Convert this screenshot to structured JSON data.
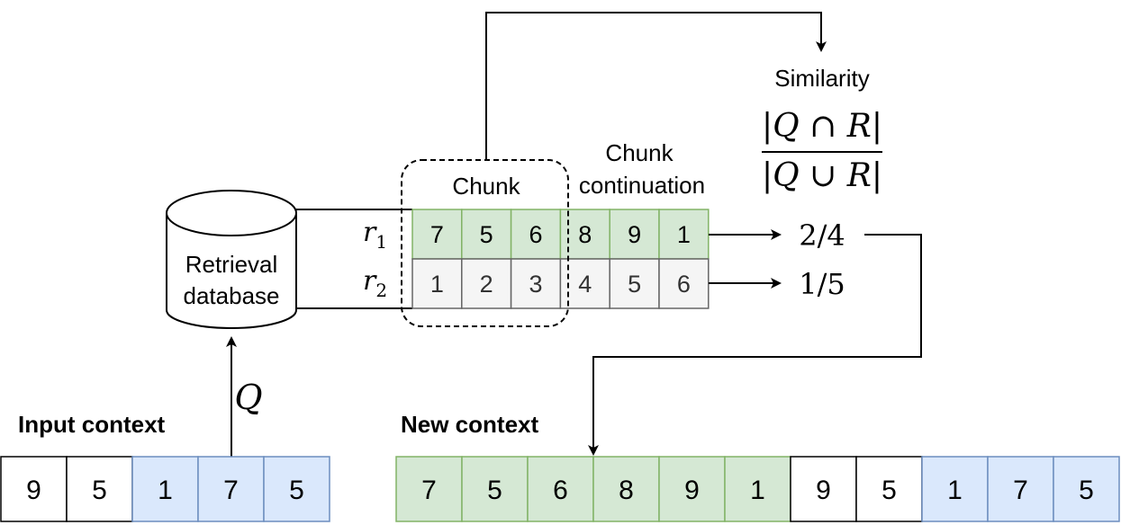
{
  "colors": {
    "green_fill": "#d5e8d4",
    "green_stroke": "#82b366",
    "blue_fill": "#dae8fc",
    "blue_stroke": "#6c8ebf",
    "gray_fill": "#f5f5f5",
    "gray_stroke": "#666666",
    "white_fill": "#ffffff",
    "black_stroke": "#000000"
  },
  "database": {
    "line1": "Retrieval",
    "line2": "database"
  },
  "query_label": "Q",
  "input_context": {
    "title": "Input context",
    "tokens": [
      "9",
      "5",
      "1",
      "7",
      "5"
    ],
    "styles": [
      "white",
      "white",
      "blue",
      "blue",
      "blue"
    ]
  },
  "new_context": {
    "title": "New context",
    "tokens": [
      "7",
      "5",
      "6",
      "8",
      "9",
      "1",
      "9",
      "5",
      "1",
      "7",
      "5"
    ],
    "styles": [
      "green",
      "green",
      "green",
      "green",
      "green",
      "green",
      "white",
      "white",
      "blue",
      "blue",
      "blue"
    ]
  },
  "chunk_label": "Chunk",
  "continuation_label": {
    "line1": "Chunk",
    "line2": "continuation"
  },
  "retrieved": [
    {
      "label": "r",
      "sub": "1",
      "tokens": [
        "7",
        "5",
        "6",
        "8",
        "9",
        "1"
      ],
      "style": "green",
      "score": "2/4"
    },
    {
      "label": "r",
      "sub": "2",
      "tokens": [
        "1",
        "2",
        "3",
        "4",
        "5",
        "6"
      ],
      "style": "gray",
      "score": "1/5"
    }
  ],
  "similarity": {
    "title": "Similarity",
    "numerator": "|Q ∩ R|",
    "denominator": "|Q ∪ R|"
  }
}
